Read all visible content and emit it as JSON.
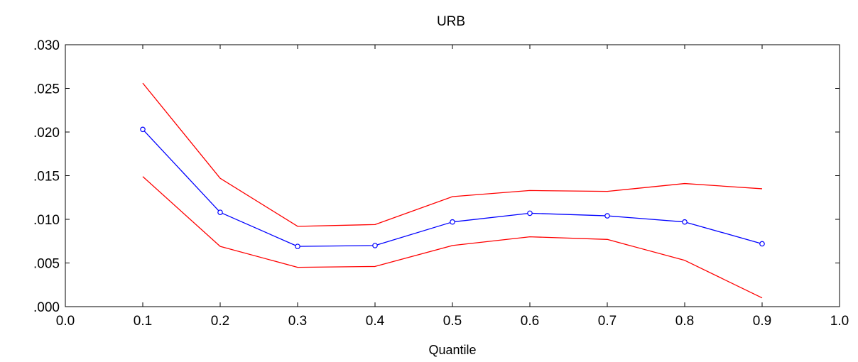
{
  "chart_data": {
    "type": "line",
    "title": "URB",
    "xlabel": "Quantile",
    "ylabel": "",
    "xlim": [
      0.0,
      1.0
    ],
    "ylim": [
      0.0,
      0.03
    ],
    "x_ticks": [
      "0.0",
      "0.1",
      "0.2",
      "0.3",
      "0.4",
      "0.5",
      "0.6",
      "0.7",
      "0.8",
      "0.9",
      "1.0"
    ],
    "y_ticks": [
      ".000",
      ".005",
      ".010",
      ".015",
      ".020",
      ".025",
      ".030"
    ],
    "grid": false,
    "legend": "none",
    "x": [
      0.1,
      0.2,
      0.3,
      0.4,
      0.5,
      0.6,
      0.7,
      0.8,
      0.9
    ],
    "series": [
      {
        "values": [
          0.0256,
          0.0147,
          0.0092,
          0.0094,
          0.0126,
          0.0133,
          0.0132,
          0.0141,
          0.0135
        ],
        "color": "#ff0000",
        "markers": false
      },
      {
        "values": [
          0.0203,
          0.0108,
          0.0069,
          0.007,
          0.0097,
          0.0107,
          0.0104,
          0.0097,
          0.0072
        ],
        "color": "#0000ff",
        "markers": true
      },
      {
        "values": [
          0.0149,
          0.0069,
          0.0045,
          0.0046,
          0.007,
          0.008,
          0.0077,
          0.0053,
          0.001
        ],
        "color": "#ff0000",
        "markers": false
      }
    ]
  }
}
